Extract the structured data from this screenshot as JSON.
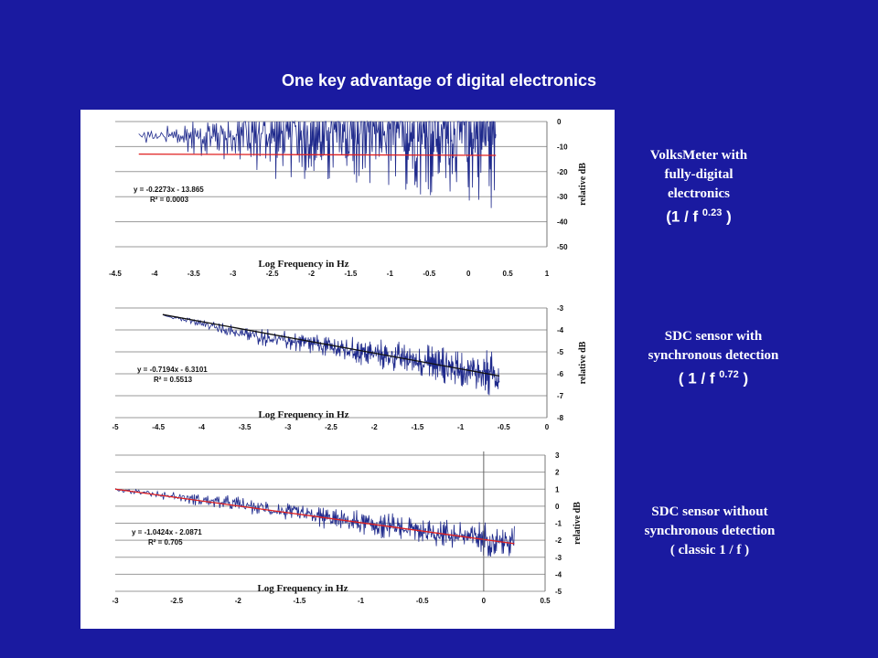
{
  "slide": {
    "title": "One key advantage of digital electronics"
  },
  "annotations": [
    {
      "lines": [
        "VolksMeter with",
        "fully-digital",
        "electronics"
      ],
      "formula_prefix": "(1 / f ",
      "exponent": "0.23",
      "formula_suffix": " )"
    },
    {
      "lines": [
        "SDC sensor with",
        "synchronous detection"
      ],
      "formula_prefix": "( 1 / f ",
      "exponent": "0.72",
      "formula_suffix": " )"
    },
    {
      "lines": [
        "SDC sensor without",
        "synchronous detection",
        "( classic 1 / f  )"
      ],
      "formula_prefix": "",
      "exponent": "",
      "formula_suffix": ""
    }
  ],
  "chart_data": [
    {
      "type": "line",
      "xlabel": "Log Frequency in Hz",
      "ylabel": "relative dB",
      "xlim": [
        -4.5,
        1
      ],
      "ylim": [
        -50,
        0
      ],
      "x_ticks": [
        "-4.5",
        "-4",
        "-3.5",
        "-3",
        "-2.5",
        "-2",
        "-1.5",
        "-1",
        "-0.5",
        "0",
        "0.5",
        "1"
      ],
      "y_ticks": [
        "0",
        "-10",
        "-20",
        "-30",
        "-40",
        "-50"
      ],
      "grid": true,
      "series": [
        {
          "color": "#1f2a8c",
          "x_range": [
            -4.2,
            0.35
          ],
          "mean": [
            [
              -4.2,
              -6
            ],
            [
              -3.5,
              -6
            ],
            [
              -2.5,
              -5
            ],
            [
              -1.5,
              -4
            ],
            [
              -0.5,
              -3
            ],
            [
              0.35,
              -3
            ]
          ],
          "spread": [
            [
              -4.2,
              2
            ],
            [
              -3.5,
              6
            ],
            [
              -2.5,
              14
            ],
            [
              -1.5,
              20
            ],
            [
              -0.5,
              24
            ],
            [
              0.35,
              26
            ]
          ]
        }
      ],
      "fit_line": {
        "color": "#e02020",
        "slope": -0.2273,
        "intercept": -13.865,
        "x_range": [
          -4.2,
          0.35
        ]
      },
      "equation": "y = -0.2273x - 13.865",
      "r_squared": "R² = 0.0003"
    },
    {
      "type": "line",
      "xlabel": "Log Frequency in Hz",
      "ylabel": "relative dB",
      "xlim": [
        -5,
        0
      ],
      "ylim": [
        -8,
        -3
      ],
      "x_ticks": [
        "-5",
        "-4.5",
        "-4",
        "-3.5",
        "-3",
        "-2.5",
        "-2",
        "-1.5",
        "-1",
        "-0.5",
        "0"
      ],
      "y_ticks": [
        "-3",
        "-4",
        "-5",
        "-6",
        "-7",
        "-8"
      ],
      "grid": true,
      "series": [
        {
          "color": "#1f2a8c",
          "x_range": [
            -4.45,
            -0.55
          ],
          "mean": [
            [
              -4.45,
              -3.3
            ],
            [
              -3.5,
              -4.2
            ],
            [
              -2.5,
              -4.8
            ],
            [
              -1.5,
              -5.4
            ],
            [
              -0.55,
              -6.1
            ]
          ],
          "spread": [
            [
              -4.45,
              0.05
            ],
            [
              -3.5,
              0.3
            ],
            [
              -2.5,
              0.45
            ],
            [
              -1.5,
              0.65
            ],
            [
              -0.55,
              0.9
            ]
          ]
        }
      ],
      "fit_line": {
        "color": "#111111",
        "slope": -0.7194,
        "intercept": -6.3101,
        "x_range": [
          -4.45,
          -0.55
        ]
      },
      "equation": "y = -0.7194x - 6.3101",
      "r_squared": "R² = 0.5513"
    },
    {
      "type": "line",
      "xlabel": "Log Frequency in Hz",
      "ylabel": "relative dB",
      "xlim": [
        -3,
        0.5
      ],
      "ylim": [
        -5,
        3
      ],
      "x_ticks": [
        "-3",
        "-2.5",
        "-2",
        "-1.5",
        "-1",
        "-0.5",
        "0",
        "0.5"
      ],
      "y_ticks": [
        "3",
        "2",
        "1",
        "0",
        "-1",
        "-2",
        "-3",
        "-4",
        "-5"
      ],
      "grid": true,
      "series": [
        {
          "color": "#1f2a8c",
          "x_range": [
            -3,
            0.25
          ],
          "mean": [
            [
              -3,
              1.0
            ],
            [
              -2,
              0.1
            ],
            [
              -1,
              -1.0
            ],
            [
              0,
              -1.9
            ],
            [
              0.25,
              -2.2
            ]
          ],
          "spread": [
            [
              -3,
              0.1
            ],
            [
              -2,
              0.4
            ],
            [
              -1,
              0.6
            ],
            [
              0,
              0.8
            ],
            [
              0.25,
              1.0
            ]
          ]
        }
      ],
      "fit_line": {
        "color": "#e02020",
        "slope": -1.0424,
        "intercept": -2.0871,
        "x_range": [
          -3,
          0.25
        ]
      },
      "equation": "y = -1.0424x - 2.0871",
      "r_squared": "R² = 0.705"
    }
  ]
}
